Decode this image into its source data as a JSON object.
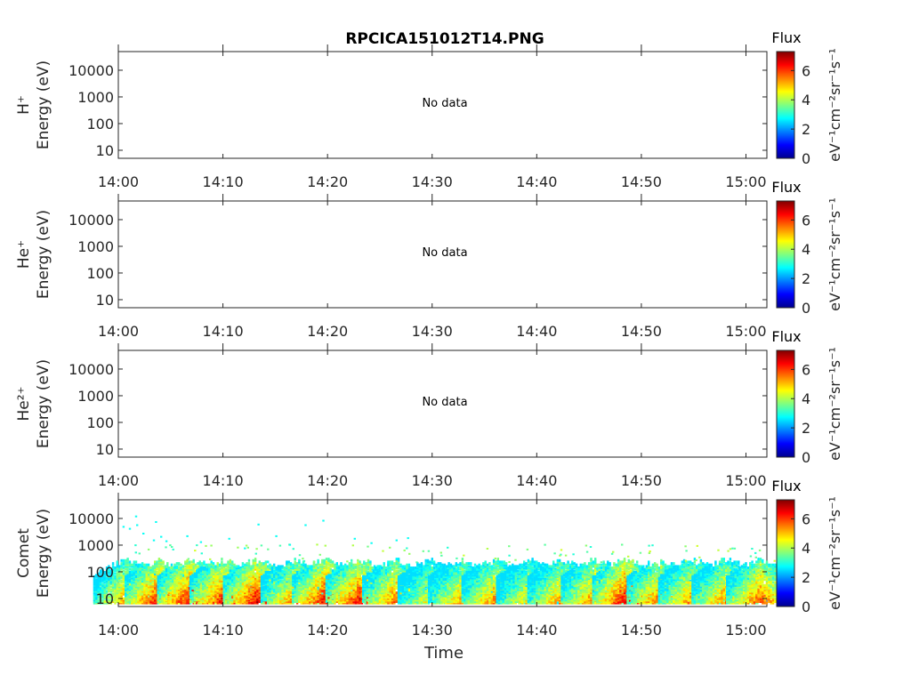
{
  "chart_data": {
    "type": "heatmap",
    "title": "RPCICA151012T14.PNG",
    "xlabel": "Time",
    "x_ticks": [
      "14:00",
      "14:10",
      "14:20",
      "14:30",
      "14:40",
      "14:50",
      "15:00"
    ],
    "x_range": [
      "14:00",
      "15:02"
    ],
    "y_scale": "log",
    "y_ticks": [
      "10",
      "100",
      "1000",
      "10000"
    ],
    "y_range": [
      5,
      50000
    ],
    "colorbar": {
      "label": "Flux",
      "unit_label": "eV⁻¹cm⁻²sr⁻¹s⁻¹",
      "ticks": [
        "0",
        "2",
        "4",
        "6"
      ],
      "range": [
        0,
        7.3
      ],
      "colormap": "jet"
    },
    "panels": [
      {
        "species": "H⁺",
        "ylabel": "Energy (eV)",
        "status": "No data"
      },
      {
        "species": "He⁺",
        "ylabel": "Energy (eV)",
        "status": "No data"
      },
      {
        "species": "He²⁺",
        "ylabel": "Energy (eV)",
        "status": "No data"
      },
      {
        "species": "Comet",
        "ylabel": "Energy (eV)",
        "status": "",
        "bursts": [
          {
            "t": 0.8,
            "flux": 5.5
          },
          {
            "t": 3.8,
            "flux": 6.6
          },
          {
            "t": 6.9,
            "flux": 6.8
          },
          {
            "t": 10.0,
            "flux": 6.5
          },
          {
            "t": 13.2,
            "flux": 6.7
          },
          {
            "t": 16.8,
            "flux": 5.6
          },
          {
            "t": 19.8,
            "flux": 6.7
          },
          {
            "t": 23.0,
            "flux": 6.5
          },
          {
            "t": 26.5,
            "flux": 5.8
          },
          {
            "t": 29.9,
            "flux": 4.8
          },
          {
            "t": 32.8,
            "flux": 5.4
          },
          {
            "t": 36.0,
            "flux": 5.6
          },
          {
            "t": 39.3,
            "flux": 5.0
          },
          {
            "t": 42.3,
            "flux": 5.5
          },
          {
            "t": 45.5,
            "flux": 5.8
          },
          {
            "t": 48.5,
            "flux": 6.8
          },
          {
            "t": 51.8,
            "flux": 6.0
          },
          {
            "t": 54.8,
            "flux": 5.6
          },
          {
            "t": 58.0,
            "flux": 5.6
          },
          {
            "t": 61.3,
            "flux": 6.0
          }
        ]
      }
    ]
  }
}
